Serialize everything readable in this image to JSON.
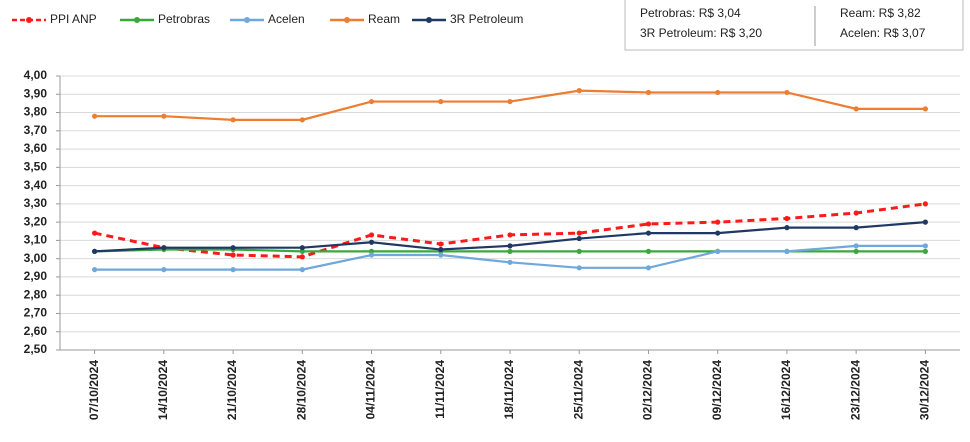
{
  "chart_data": {
    "type": "line",
    "annotations": [
      "Petrobras: R$ 3,04",
      "Ream: R$ 3,82",
      "3R Petroleum: R$ 3,20",
      "Acelen: R$ 3,07"
    ],
    "categories": [
      "07/10/2024",
      "14/10/2024",
      "21/10/2024",
      "28/10/2024",
      "04/11/2024",
      "11/11/2024",
      "18/11/2024",
      "25/11/2024",
      "02/12/2024",
      "09/12/2024",
      "16/12/2024",
      "23/12/2024",
      "30/12/2024"
    ],
    "series": [
      {
        "name": "PPI ANP",
        "color": "#ff1a1a",
        "dashed": true,
        "values": [
          3.14,
          3.06,
          3.02,
          3.01,
          3.13,
          3.08,
          3.13,
          3.14,
          3.19,
          3.2,
          3.22,
          3.25,
          3.3
        ]
      },
      {
        "name": "Petrobras",
        "color": "#3aa83a",
        "values": [
          3.04,
          3.05,
          3.05,
          3.04,
          3.04,
          3.04,
          3.04,
          3.04,
          3.04,
          3.04,
          3.04,
          3.04,
          3.04
        ]
      },
      {
        "name": "Acelen",
        "color": "#6fa8dc",
        "values": [
          2.94,
          2.94,
          2.94,
          2.94,
          3.02,
          3.02,
          2.98,
          2.95,
          2.95,
          3.04,
          3.04,
          3.07,
          3.07
        ]
      },
      {
        "name": "Ream",
        "color": "#ed7d31",
        "values": [
          3.78,
          3.78,
          3.76,
          3.76,
          3.86,
          3.86,
          3.86,
          3.92,
          3.91,
          3.91,
          3.91,
          3.82,
          3.82
        ]
      },
      {
        "name": "3R Petroleum",
        "color": "#1f3864",
        "values": [
          3.04,
          3.06,
          3.06,
          3.06,
          3.09,
          3.05,
          3.07,
          3.11,
          3.14,
          3.14,
          3.17,
          3.17,
          3.2
        ]
      }
    ],
    "ylim": [
      2.5,
      4.0
    ],
    "yticks": [
      {
        "value": 2.5,
        "label": "2,50"
      },
      {
        "value": 2.6,
        "label": "2,60"
      },
      {
        "value": 2.7,
        "label": "2,70"
      },
      {
        "value": 2.8,
        "label": "2,80"
      },
      {
        "value": 2.9,
        "label": "2,90"
      },
      {
        "value": 3.0,
        "label": "3,00"
      },
      {
        "value": 3.1,
        "label": "3,10"
      },
      {
        "value": 3.2,
        "label": "3,20"
      },
      {
        "value": 3.3,
        "label": "3,30"
      },
      {
        "value": 3.4,
        "label": "3,40"
      },
      {
        "value": 3.5,
        "label": "3,50"
      },
      {
        "value": 3.6,
        "label": "3,60"
      },
      {
        "value": 3.7,
        "label": "3,70"
      },
      {
        "value": 3.8,
        "label": "3,80"
      },
      {
        "value": 3.9,
        "label": "3,90"
      },
      {
        "value": 4.0,
        "label": "4,00"
      }
    ],
    "grid": true
  }
}
